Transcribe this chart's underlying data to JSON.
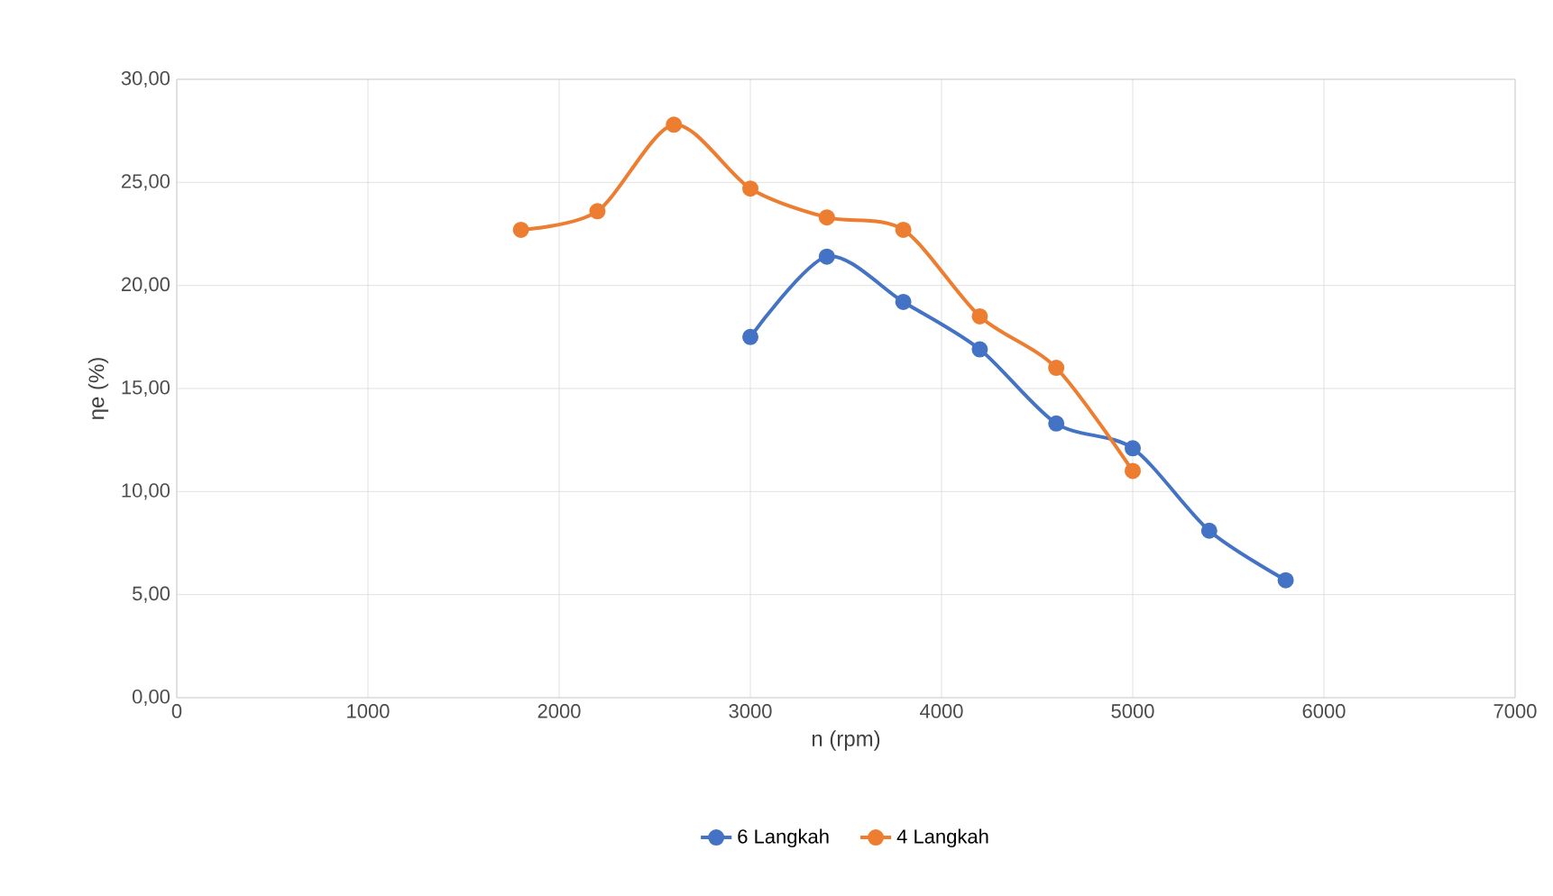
{
  "chart_data": {
    "type": "line",
    "xlabel": "n (rpm)",
    "ylabel": "ηe (%)",
    "xlim": [
      0,
      7000
    ],
    "xticks": [
      0,
      1000,
      2000,
      3000,
      4000,
      5000,
      6000,
      7000
    ],
    "ylim": [
      0,
      30
    ],
    "yticks": [
      {
        "value": 0,
        "label": "0,00"
      },
      {
        "value": 5,
        "label": "5,00"
      },
      {
        "value": 10,
        "label": "10,00"
      },
      {
        "value": 15,
        "label": "15,00"
      },
      {
        "value": 20,
        "label": "20,00"
      },
      {
        "value": 25,
        "label": "25,00"
      },
      {
        "value": 30,
        "label": "30,00"
      }
    ],
    "grid": true,
    "legend": "bottom",
    "marker": "circle",
    "line_style": "solid",
    "series": [
      {
        "name": "6 Langkah",
        "color": "#4472c4",
        "x": [
          3000,
          3400,
          3800,
          4200,
          4600,
          5000,
          5400,
          5800
        ],
        "values": [
          17.5,
          21.4,
          19.2,
          16.9,
          13.3,
          12.1,
          8.1,
          5.7
        ]
      },
      {
        "name": "4 Langkah",
        "color": "#ed7d31",
        "x": [
          1800,
          2200,
          2600,
          3000,
          3400,
          3800,
          4200,
          4600,
          5000
        ],
        "values": [
          22.7,
          23.6,
          27.8,
          24.7,
          23.3,
          22.7,
          18.5,
          16.0,
          11.0
        ]
      }
    ]
  }
}
